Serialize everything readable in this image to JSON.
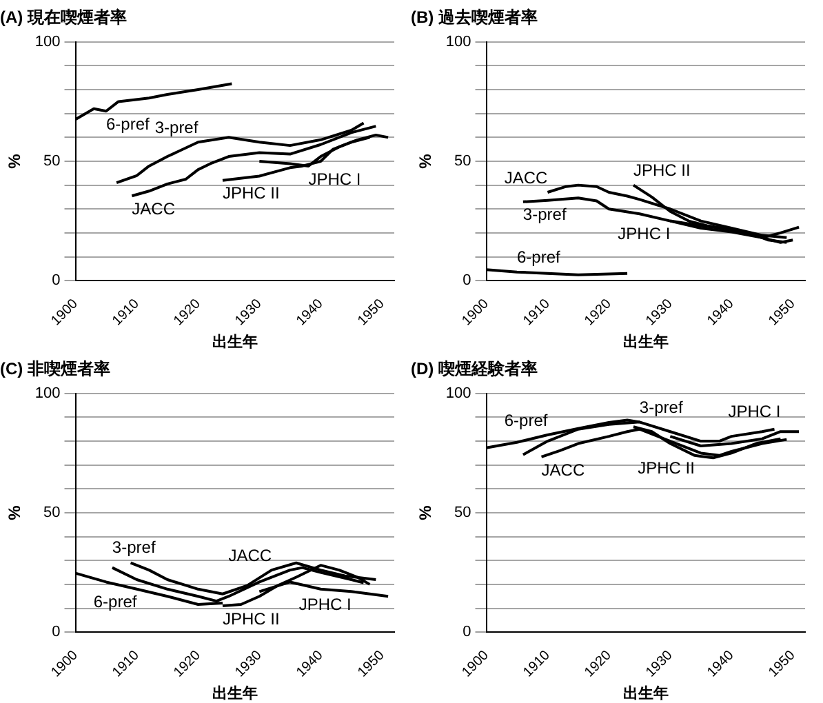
{
  "chart_data": [
    {
      "type": "line",
      "title": "(A) 現在喫煙者率",
      "xlabel": "出生年",
      "ylabel": "%",
      "xlim": [
        1900,
        1952
      ],
      "xticks": [
        1900,
        1910,
        1920,
        1930,
        1940,
        1950
      ],
      "ylim": [
        0,
        100
      ],
      "yticks": [
        0,
        {
          "value": 10,
          "label": null
        },
        {
          "value": 20,
          "label": null
        },
        {
          "value": 30,
          "label": null
        },
        {
          "value": 40,
          "label": null
        },
        50,
        {
          "value": 60,
          "label": null
        },
        {
          "value": 70,
          "label": null
        },
        {
          "value": 80,
          "label": null
        },
        {
          "value": 90,
          "label": null
        },
        100
      ],
      "grid": "y",
      "legend": false,
      "marker": "none",
      "line_style": "solid",
      "series": [
        {
          "name": "6-pref",
          "color": "#000000",
          "x": [
            1900,
            1903,
            1905,
            1907,
            1912,
            1915,
            1920,
            1925.5
          ],
          "values": [
            67.5,
            72,
            71,
            75,
            76.5,
            78,
            80,
            82.5
          ]
        },
        {
          "name": "3-pref",
          "color": "#000000",
          "x": [
            1906.7,
            1910,
            1912,
            1915,
            1920,
            1925,
            1930,
            1935,
            1940,
            1945,
            1947
          ],
          "values": [
            41,
            44,
            48,
            52,
            58,
            60,
            58,
            56.6,
            59,
            63,
            66
          ]
        },
        {
          "name": "JACC",
          "color": "#000000",
          "x": [
            1909.2,
            1912,
            1915,
            1918,
            1920,
            1922,
            1925,
            1930,
            1935,
            1940,
            1945,
            1949
          ],
          "values": [
            35.5,
            37.5,
            40.5,
            42.5,
            46.5,
            49,
            52,
            53.6,
            53,
            57,
            62,
            64.7
          ]
        },
        {
          "name": "JPHC II",
          "color": "#000000",
          "x": [
            1924,
            1930,
            1935,
            1937,
            1940,
            1942,
            1945,
            1948
          ],
          "values": [
            42,
            43.8,
            47.3,
            48,
            50,
            55,
            58,
            60
          ]
        },
        {
          "name": "JPHC I",
          "color": "#000000",
          "x": [
            1930,
            1935,
            1938,
            1940,
            1943,
            1946,
            1949,
            1951
          ],
          "values": [
            50,
            49,
            48,
            52,
            56,
            59,
            61,
            60
          ]
        }
      ]
    },
    {
      "type": "line",
      "title": "(B) 過去喫煙者率",
      "xlabel": "出生年",
      "ylabel": "%",
      "xlim": [
        1900,
        1952
      ],
      "xticks": [
        1900,
        1910,
        1920,
        1930,
        1940,
        1950
      ],
      "ylim": [
        0,
        100
      ],
      "yticks": [
        0,
        {
          "value": 10,
          "label": null
        },
        {
          "value": 20,
          "label": null
        },
        {
          "value": 30,
          "label": null
        },
        {
          "value": 40,
          "label": null
        },
        50,
        {
          "value": 60,
          "label": null
        },
        {
          "value": 70,
          "label": null
        },
        {
          "value": 80,
          "label": null
        },
        {
          "value": 90,
          "label": null
        },
        100
      ],
      "grid": "y",
      "legend": false,
      "marker": "none",
      "line_style": "solid",
      "series": [
        {
          "name": "6-pref",
          "color": "#000000",
          "x": [
            1900,
            1905,
            1910,
            1915,
            1920,
            1923
          ],
          "values": [
            4.6,
            3.6,
            3,
            2.4,
            2.8,
            3
          ]
        },
        {
          "name": "3-pref",
          "color": "#000000",
          "x": [
            1906,
            1910,
            1915,
            1918,
            1920,
            1925,
            1930,
            1935,
            1940,
            1945,
            1948,
            1950
          ],
          "values": [
            33,
            33.6,
            34.6,
            33.4,
            30,
            28,
            25,
            22,
            20.4,
            18,
            16,
            17
          ]
        },
        {
          "name": "JACC",
          "color": "#000000",
          "x": [
            1910,
            1913,
            1915,
            1918,
            1920,
            1923,
            1925,
            1930,
            1935,
            1940,
            1945,
            1949
          ],
          "values": [
            37,
            39.4,
            40,
            39.4,
            37,
            35.4,
            34,
            30,
            25,
            22,
            19,
            18
          ]
        },
        {
          "name": "JPHC II",
          "color": "#000000",
          "x": [
            1924,
            1927,
            1930,
            1933,
            1936,
            1940,
            1943,
            1946,
            1949
          ],
          "values": [
            40,
            35,
            29,
            25,
            23,
            21.4,
            20,
            17,
            16
          ]
        },
        {
          "name": "JPHC I",
          "color": "#000000",
          "x": [
            1930,
            1935,
            1940,
            1945,
            1948,
            1951
          ],
          "values": [
            25,
            23,
            21.4,
            18,
            20,
            22.4
          ]
        }
      ]
    },
    {
      "type": "line",
      "title": "(C) 非喫煙者率",
      "xlabel": "出生年",
      "ylabel": "%",
      "xlim": [
        1900,
        1952
      ],
      "xticks": [
        1900,
        1910,
        1920,
        1930,
        1940,
        1950
      ],
      "ylim": [
        0,
        100
      ],
      "yticks": [
        0,
        {
          "value": 10,
          "label": null
        },
        {
          "value": 20,
          "label": null
        },
        {
          "value": 30,
          "label": null
        },
        {
          "value": 40,
          "label": null
        },
        50,
        {
          "value": 60,
          "label": null
        },
        {
          "value": 70,
          "label": null
        },
        {
          "value": 80,
          "label": null
        },
        {
          "value": 90,
          "label": null
        },
        100
      ],
      "grid": "y",
      "legend": false,
      "marker": "none",
      "line_style": "solid",
      "series": [
        {
          "name": "6-pref",
          "color": "#000000",
          "x": [
            1900,
            1905,
            1910,
            1915,
            1920,
            1924
          ],
          "values": [
            24.7,
            21,
            18,
            15,
            11.6,
            12.2
          ]
        },
        {
          "name": "3-pref",
          "color": "#000000",
          "x": [
            1906,
            1910,
            1915,
            1920,
            1923,
            1925,
            1930,
            1935,
            1937,
            1940,
            1945,
            1947
          ],
          "values": [
            27,
            22,
            18,
            15,
            13,
            15,
            21,
            26,
            27,
            25,
            22,
            20.7
          ]
        },
        {
          "name": "JACC",
          "color": "#000000",
          "x": [
            1909,
            1912,
            1915,
            1920,
            1924,
            1928,
            1932,
            1936,
            1940,
            1944,
            1949
          ],
          "values": [
            29,
            26,
            22,
            18,
            16,
            19.5,
            26,
            29,
            26,
            23.5,
            22
          ]
        },
        {
          "name": "JPHC II",
          "color": "#000000",
          "x": [
            1924,
            1927,
            1930,
            1933,
            1936,
            1940,
            1943,
            1946,
            1948
          ],
          "values": [
            11,
            11.6,
            15,
            19.5,
            23,
            28,
            26,
            23,
            20
          ]
        },
        {
          "name": "JPHC I",
          "color": "#000000",
          "x": [
            1930,
            1935,
            1940,
            1945,
            1948,
            1951
          ],
          "values": [
            17,
            21,
            18,
            17,
            16,
            15
          ]
        }
      ]
    },
    {
      "type": "line",
      "title": "(D) 喫煙経験者率",
      "xlabel": "出生年",
      "ylabel": "%",
      "xlim": [
        1900,
        1952
      ],
      "xticks": [
        1900,
        1910,
        1920,
        1930,
        1940,
        1950
      ],
      "ylim": [
        0,
        100
      ],
      "yticks": [
        0,
        {
          "value": 10,
          "label": null
        },
        {
          "value": 20,
          "label": null
        },
        {
          "value": 30,
          "label": null
        },
        {
          "value": 40,
          "label": null
        },
        50,
        {
          "value": 60,
          "label": null
        },
        {
          "value": 70,
          "label": null
        },
        {
          "value": 80,
          "label": null
        },
        {
          "value": 90,
          "label": null
        },
        100
      ],
      "grid": "y",
      "legend": false,
      "marker": "none",
      "line_style": "solid",
      "series": [
        {
          "name": "6-pref",
          "color": "#000000",
          "x": [
            1900,
            1905,
            1910,
            1915,
            1920,
            1923,
            1925
          ],
          "values": [
            77.2,
            79.5,
            82.6,
            85.3,
            87.8,
            88.8,
            88
          ]
        },
        {
          "name": "3-pref",
          "color": "#000000",
          "x": [
            1906,
            1910,
            1915,
            1920,
            1925,
            1930,
            1935,
            1938,
            1940,
            1945,
            1947
          ],
          "values": [
            74.3,
            80,
            85,
            87,
            88,
            84,
            80,
            80,
            82,
            84,
            85
          ]
        },
        {
          "name": "JACC",
          "color": "#000000",
          "x": [
            1909,
            1912,
            1915,
            1920,
            1923,
            1925,
            1930,
            1935,
            1938,
            1940,
            1945,
            1949
          ],
          "values": [
            73.4,
            76,
            79,
            82,
            84,
            85,
            80,
            75,
            74,
            75.7,
            79,
            80.7
          ]
        },
        {
          "name": "JPHC II",
          "color": "#000000",
          "x": [
            1924,
            1927,
            1930,
            1934,
            1937,
            1940,
            1944,
            1948
          ],
          "values": [
            86,
            84,
            79,
            74,
            73,
            75,
            79,
            81
          ]
        },
        {
          "name": "JPHC I",
          "color": "#000000",
          "x": [
            1930,
            1935,
            1940,
            1945,
            1948,
            1951
          ],
          "values": [
            82,
            78,
            79,
            81,
            84,
            84
          ]
        }
      ]
    }
  ]
}
